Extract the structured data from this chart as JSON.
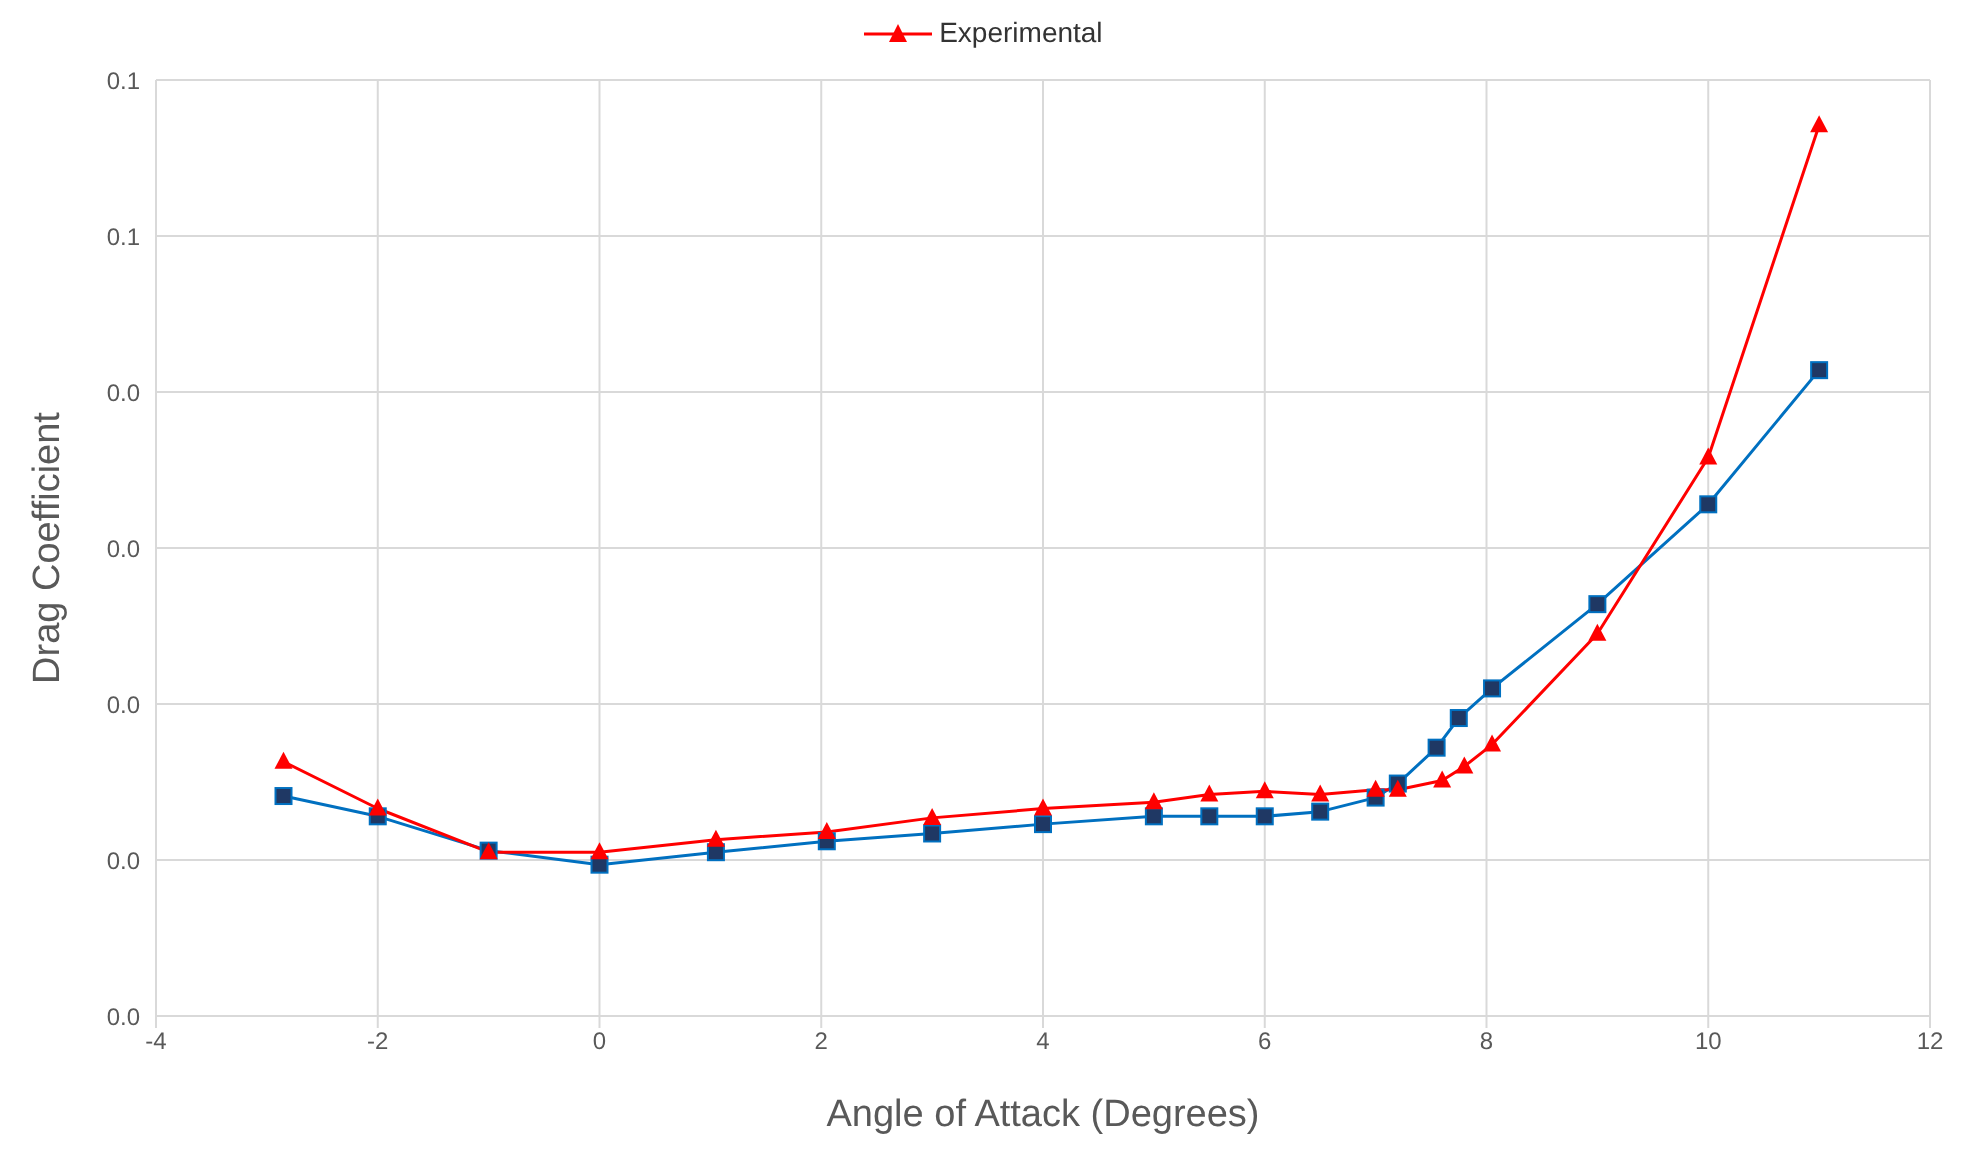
{
  "chart_data": {
    "type": "line",
    "xlabel": "Angle of Attack (Degrees)",
    "ylabel": "Drag Coefficient",
    "xlim": [
      -4,
      12
    ],
    "xticks": [
      -4,
      -2,
      0,
      2,
      4,
      6,
      8,
      10,
      12
    ],
    "ylim": [
      0,
      0.06
    ],
    "yticks": [
      {
        "value": 0,
        "label": "0.0"
      },
      {
        "value": 0.01,
        "label": "0.0"
      },
      {
        "value": 0.02,
        "label": "0.0"
      },
      {
        "value": 0.03,
        "label": "0.0"
      },
      {
        "value": 0.04,
        "label": "0.0"
      },
      {
        "value": 0.05,
        "label": "0.1"
      },
      {
        "value": 0.06,
        "label": "0.1"
      }
    ],
    "grid": true,
    "legend": "top",
    "series": [
      {
        "name": "Experimental",
        "color": "#ff0000",
        "marker": "triangle",
        "x": [
          -2.85,
          -2,
          -1,
          0,
          1.05,
          2.05,
          3,
          4,
          5,
          5.5,
          6,
          6.5,
          7,
          7.2,
          7.6,
          7.8,
          8.05,
          9,
          10,
          11
        ],
        "values": [
          0.0163,
          0.0133,
          0.0105,
          0.0105,
          0.0113,
          0.0118,
          0.0127,
          0.0133,
          0.0137,
          0.0142,
          0.0144,
          0.0142,
          0.0145,
          0.0145,
          0.0151,
          0.016,
          0.0174,
          0.0245,
          0.0358,
          0.0571
        ]
      },
      {
        "color": "#0070c0",
        "marker": "square",
        "x": [
          -2.85,
          -2,
          -1,
          0,
          1.05,
          2.05,
          3,
          4,
          5,
          5.5,
          6,
          6.5,
          7,
          7.2,
          7.55,
          7.75,
          8.05,
          9,
          10,
          11
        ],
        "values": [
          0.0141,
          0.0128,
          0.0106,
          0.0097,
          0.0105,
          0.0112,
          0.0117,
          0.0123,
          0.0128,
          0.0128,
          0.0128,
          0.0131,
          0.014,
          0.0149,
          0.0172,
          0.0191,
          0.021,
          0.0264,
          0.0328,
          0.0414
        ]
      }
    ]
  }
}
